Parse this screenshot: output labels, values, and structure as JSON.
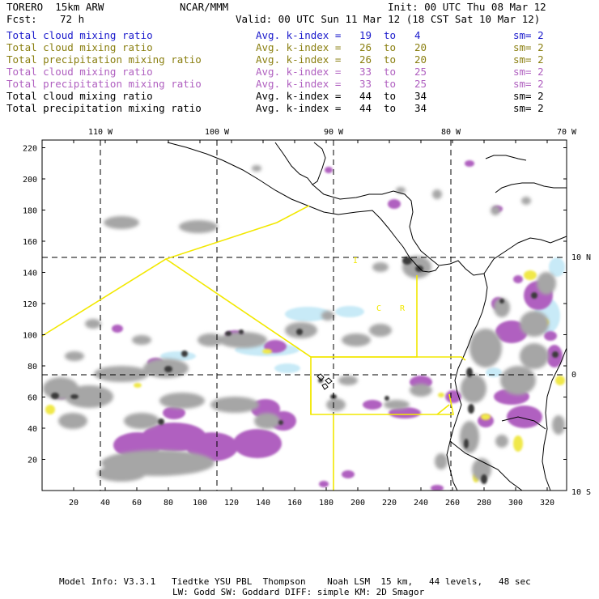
{
  "header": {
    "model": "TORERO  15km ARW",
    "org": "NCAR/MMM",
    "init": "Init: 00 UTC Thu 08 Mar 12",
    "fcst_label": "Fcst:",
    "fcst_value": "72 h",
    "valid": "Valid: 00 UTC Sun 11 Mar 12 (18 CST Sat 10 Mar 12)"
  },
  "legend": [
    {
      "field": "Total cloud mixing ratio",
      "kindex": "Avg. k-index =",
      "from": "19",
      "to_word": "to",
      "to": "4",
      "sm": "sm= 2",
      "color": "#1a1acc"
    },
    {
      "field": "Total cloud mixing ratio",
      "kindex": "Avg. k-index =",
      "from": "26",
      "to_word": "to",
      "to": "20",
      "sm": "sm= 2",
      "color": "#8a7f10"
    },
    {
      "field": "Total precipitation mixing ratio",
      "kindex": "Avg. k-index =",
      "from": "26",
      "to_word": "to",
      "to": "20",
      "sm": "sm= 2",
      "color": "#8a7f10"
    },
    {
      "field": "Total cloud mixing ratio",
      "kindex": "Avg. k-index =",
      "from": "33",
      "to_word": "to",
      "to": "25",
      "sm": "sm= 2",
      "color": "#b060c0"
    },
    {
      "field": "Total precipitation mixing ratio",
      "kindex": "Avg. k-index =",
      "from": "33",
      "to_word": "to",
      "to": "25",
      "sm": "sm= 2",
      "color": "#b060c0"
    },
    {
      "field": "Total cloud mixing ratio",
      "kindex": "Avg. k-index =",
      "from": "44",
      "to_word": "to",
      "to": "34",
      "sm": "sm= 2",
      "color": "#000000"
    },
    {
      "field": "Total precipitation mixing ratio",
      "kindex": "Avg. k-index =",
      "from": "44",
      "to_word": "to",
      "to": "34",
      "sm": "sm= 2",
      "color": "#000000"
    }
  ],
  "map": {
    "longitude_labels": [
      "110 W",
      "100 W",
      "90 W",
      "80 W",
      "70 W"
    ],
    "latitude_labels": [
      "10 N",
      "0",
      "10 S"
    ],
    "y_ticks": [
      "220",
      "200",
      "180",
      "160",
      "140",
      "120",
      "100",
      "80",
      "60",
      "40",
      "20"
    ],
    "x_ticks": [
      "20",
      "40",
      "60",
      "80",
      "100",
      "120",
      "140",
      "160",
      "180",
      "200",
      "220",
      "240",
      "260",
      "280",
      "300",
      "320"
    ],
    "region_labels": [
      "I",
      "C",
      "R"
    ],
    "colors": {
      "cloud_gray": "#a6a6a6",
      "cloud_dark": "#3a3a3a",
      "precip_magenta": "#b060c0",
      "precip_yellow": "#f0e84a",
      "light_blue": "#c8eaf7",
      "box_yellow": "#f2e800"
    }
  },
  "footer": {
    "line1": "Model Info: V3.3.1   Tiedtke YSU PBL  Thompson    Noah LSM  15 km,   44 levels,   48 sec",
    "line2": "LW: Godd SW: Goddard DIFF: simple KM: 2D Smagor"
  }
}
